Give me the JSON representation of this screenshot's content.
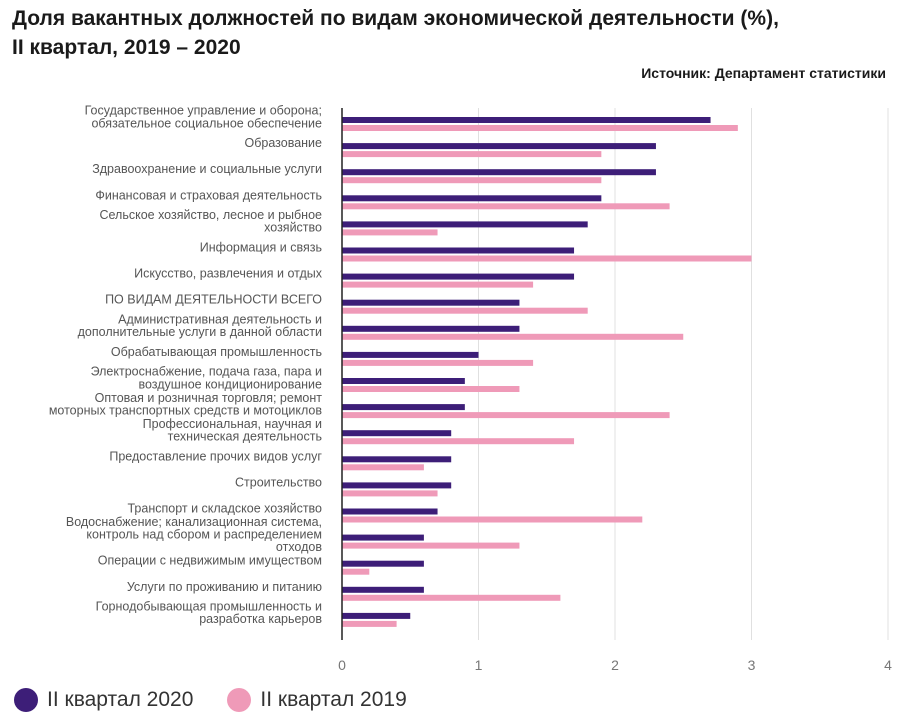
{
  "title_line1": "Доля вакантных должностей по видам экономической деятельности (%),",
  "title_line2": "II квартал, 2019 – 2020",
  "source": "Источник: Департамент статистики",
  "colors": {
    "series_2020": "#3d1e78",
    "series_2019": "#ef9ab8",
    "gridline": "#e0e0e0",
    "axis": "#222222"
  },
  "chart_data": {
    "type": "bar",
    "orientation": "horizontal",
    "categories": [
      [
        "Государственное управление и оборона;",
        "обязательное социальное обеспечение"
      ],
      [
        "Образование"
      ],
      [
        "Здравоохранение и социальные услуги"
      ],
      [
        "Финансовая и страховая деятельность"
      ],
      [
        "Сельское хозяйство, лесное и рыбное",
        "хозяйство"
      ],
      [
        "Информация и связь"
      ],
      [
        "Искусство, развлечения и отдых"
      ],
      [
        "ПО ВИДАМ ДЕЯТЕЛЬНОСТИ ВСЕГО"
      ],
      [
        "Административная деятельность и",
        "дополнительные услуги в данной области"
      ],
      [
        "Обрабатывающая промышленность"
      ],
      [
        "Электроснабжение, подача газа, пара и",
        "воздушное кондиционирование"
      ],
      [
        "Оптовая и розничная торговля; ремонт",
        "моторных транспортных средств и мотоциклов"
      ],
      [
        "Профессиональная, научная и",
        "техническая деятельность"
      ],
      [
        "Предоставление прочих видов услуг"
      ],
      [
        "Строительство"
      ],
      [
        "Транспорт и складское хозяйство"
      ],
      [
        "Водоснабжение; канализационная система,",
        "контроль над сбором и распределением",
        "отходов"
      ],
      [
        "Операции с недвижимым имуществом"
      ],
      [
        "Услуги по проживанию и питанию"
      ],
      [
        "Горнодобывающая промышленность и",
        "разработка карьеров"
      ]
    ],
    "series": [
      {
        "name": "II квартал 2020",
        "color": "#3d1e78",
        "values": [
          2.7,
          2.3,
          2.3,
          1.9,
          1.8,
          1.7,
          1.7,
          1.3,
          1.3,
          1.0,
          0.9,
          0.9,
          0.8,
          0.8,
          0.8,
          0.7,
          0.6,
          0.6,
          0.6,
          0.5
        ]
      },
      {
        "name": "II квартал 2019",
        "color": "#ef9ab8",
        "values": [
          2.9,
          1.9,
          1.9,
          2.4,
          0.7,
          3.0,
          1.4,
          1.8,
          2.5,
          1.4,
          1.3,
          2.4,
          1.7,
          0.6,
          0.7,
          2.2,
          1.3,
          0.2,
          1.6,
          0.4
        ]
      }
    ],
    "xlim": [
      0,
      4
    ],
    "xticks": [
      "0",
      "1",
      "2",
      "3",
      "4"
    ],
    "grid": true,
    "legend_position": "bottom-left"
  }
}
